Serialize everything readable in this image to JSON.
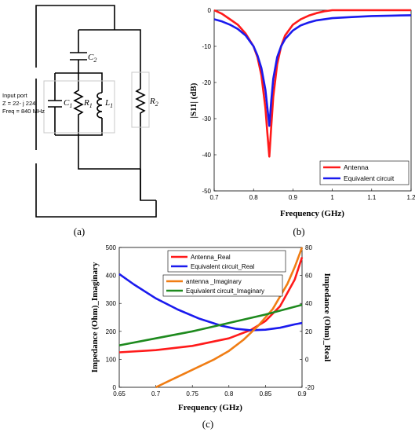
{
  "panels": {
    "a": {
      "label": "(a)"
    },
    "b": {
      "label": "(b)"
    },
    "c": {
      "label": "(c)"
    }
  },
  "circuit": {
    "input_port": [
      "Input port",
      "Z = 22- j 224",
      "Freq = 840 MHz"
    ],
    "components": {
      "c2": {
        "sym": "C",
        "sub": "2"
      },
      "c1": {
        "sym": "C",
        "sub": "1"
      },
      "r1": {
        "sym": "R",
        "sub": "1"
      },
      "l1": {
        "sym": "L",
        "sub": "1"
      },
      "r2": {
        "sym": "R",
        "sub": "2"
      }
    }
  },
  "chart_data": [
    {
      "id": "s11",
      "type": "line",
      "xlabel": "Frequency (GHz)",
      "ylabel": "|S11| (dB)",
      "xlim": [
        0.7,
        1.2
      ],
      "ylim": [
        -50,
        0
      ],
      "xticks": [
        "0.7",
        "0.8",
        "0.9",
        "1",
        "1.1",
        "1.2"
      ],
      "yticks": [
        "0",
        "-10",
        "-20",
        "-30",
        "-40",
        "-50"
      ],
      "legend_position": "bottom-right",
      "grid": false,
      "series": [
        {
          "name": "Antenna",
          "color": "#ff1a1a",
          "x": [
            0.7,
            0.72,
            0.74,
            0.76,
            0.78,
            0.8,
            0.81,
            0.82,
            0.83,
            0.835,
            0.84,
            0.845,
            0.85,
            0.86,
            0.87,
            0.88,
            0.9,
            0.92,
            0.94,
            0.96,
            0.98,
            1.0,
            1.05,
            1.1,
            1.15,
            1.2
          ],
          "y": [
            0,
            -1,
            -2.5,
            -4,
            -6.5,
            -10,
            -13,
            -18,
            -27,
            -34,
            -40.5,
            -32,
            -24,
            -15,
            -10,
            -7,
            -4,
            -2.5,
            -1.5,
            -0.8,
            -0.3,
            0,
            0,
            0,
            0,
            0
          ]
        },
        {
          "name": "Equivalent circuit",
          "color": "#1a1aee",
          "x": [
            0.7,
            0.72,
            0.74,
            0.76,
            0.78,
            0.8,
            0.81,
            0.82,
            0.83,
            0.835,
            0.84,
            0.845,
            0.85,
            0.86,
            0.87,
            0.88,
            0.9,
            0.92,
            0.94,
            0.96,
            1.0,
            1.05,
            1.1,
            1.15,
            1.2
          ],
          "y": [
            -2.5,
            -3.1,
            -4,
            -5.2,
            -7,
            -10,
            -12.5,
            -16,
            -22,
            -27,
            -32,
            -25,
            -19,
            -13,
            -10,
            -8,
            -5.6,
            -4.2,
            -3.4,
            -2.8,
            -2.2,
            -1.9,
            -1.6,
            -1.5,
            -1.4
          ]
        }
      ]
    },
    {
      "id": "impedance",
      "type": "line",
      "xlabel": "Frequency (GHz)",
      "ylabel": "Impedance (Ohm)_Imaginary",
      "y2label": "Impedance (Ohm)_Real",
      "xlim": [
        0.65,
        0.9
      ],
      "ylim": [
        0,
        500
      ],
      "y2lim": [
        -20,
        80
      ],
      "xticks": [
        "0.65",
        "0.7",
        "0.75",
        "0.8",
        "0.85",
        "0.9"
      ],
      "yticks": [
        "0",
        "100",
        "200",
        "300",
        "400",
        "500"
      ],
      "y2ticks": [
        "-20",
        "0",
        "20",
        "40",
        "60",
        "80"
      ],
      "legend_position": "top",
      "grid": false,
      "series": [
        {
          "name": "Antenna_Real",
          "axis": "left",
          "color": "#ff1a1a",
          "x": [
            0.65,
            0.7,
            0.75,
            0.8,
            0.83,
            0.85,
            0.87,
            0.89,
            0.9
          ],
          "y": [
            125,
            133,
            148,
            175,
            205,
            237,
            290,
            385,
            465
          ]
        },
        {
          "name": "Equivalent circuit_Real",
          "axis": "left",
          "color": "#1a1aee",
          "x": [
            0.65,
            0.67,
            0.7,
            0.73,
            0.76,
            0.79,
            0.81,
            0.83,
            0.85,
            0.87,
            0.89,
            0.9
          ],
          "y": [
            405,
            368,
            318,
            278,
            245,
            220,
            209,
            204,
            206,
            213,
            225,
            230
          ]
        },
        {
          "name": "antenna _Imaginary",
          "axis": "right",
          "color": "#f07d14",
          "x": [
            0.7,
            0.72,
            0.74,
            0.76,
            0.78,
            0.8,
            0.82,
            0.84,
            0.86,
            0.88,
            0.89,
            0.9
          ],
          "y": [
            -20,
            -15,
            -10,
            -5,
            0,
            6,
            14,
            24,
            36,
            54,
            66,
            80
          ]
        },
        {
          "name": "Equivalent circuit_Imaginary",
          "axis": "right",
          "color": "#1e8a1e",
          "x": [
            0.65,
            0.7,
            0.75,
            0.8,
            0.85,
            0.9
          ],
          "y": [
            10,
            15,
            20,
            26,
            32,
            39
          ]
        }
      ]
    }
  ]
}
